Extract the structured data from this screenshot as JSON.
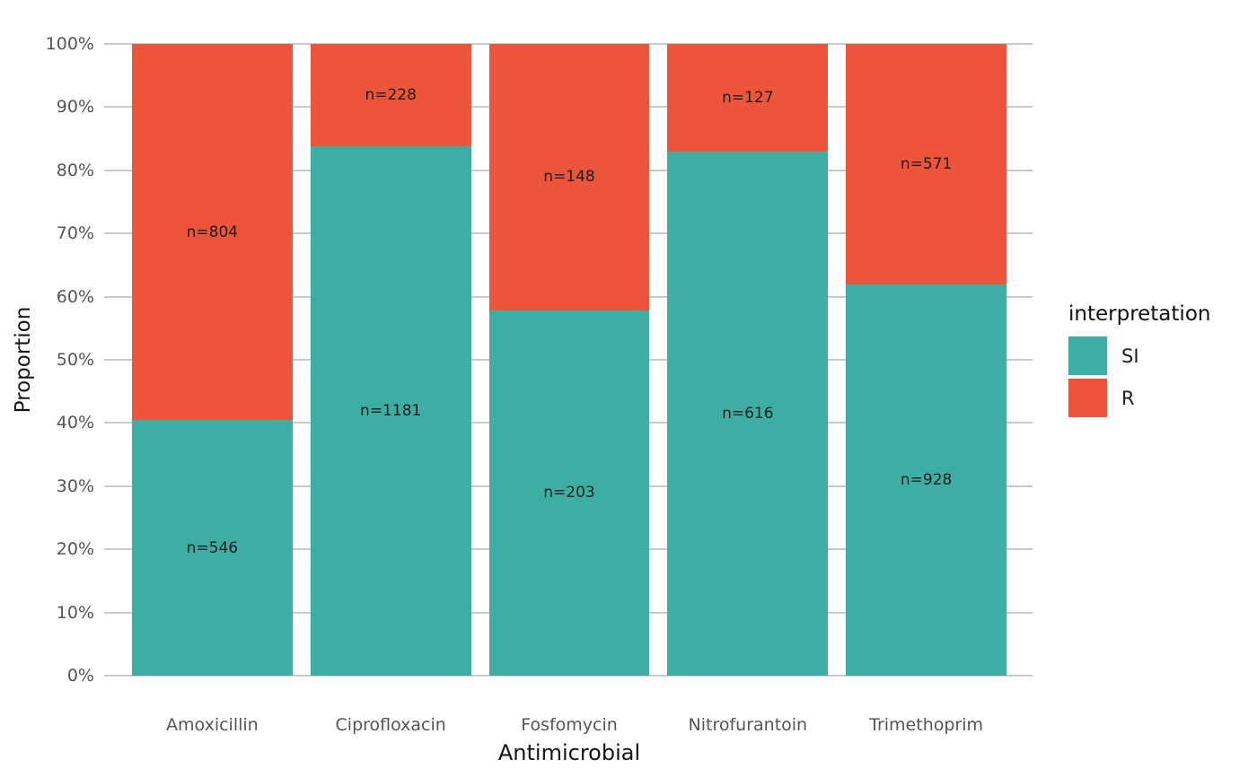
{
  "figure": {
    "background": "#ffffff"
  },
  "chart_data": {
    "type": "bar",
    "subtype": "stacked-100-percent",
    "orientation": "vertical",
    "title": "",
    "xlabel": "Antimicrobial",
    "ylabel": "Proportion",
    "categories": [
      "Amoxicillin",
      "Ciprofloxacin",
      "Fosfomycin",
      "Nitrofurantoin",
      "Trimethoprim"
    ],
    "series": [
      {
        "name": "SI",
        "color": "#3CAEA3",
        "stack_position": "bottom",
        "counts": [
          546,
          1181,
          203,
          616,
          928
        ],
        "labels": [
          "n=546",
          "n=1181",
          "n=203",
          "n=616",
          "n=928"
        ],
        "percent_of_total": [
          40.4,
          83.8,
          57.8,
          82.9,
          61.9
        ]
      },
      {
        "name": "R",
        "color": "#ED553B",
        "stack_position": "top",
        "counts": [
          804,
          228,
          148,
          127,
          571
        ],
        "labels": [
          "n=804",
          "n=228",
          "n=148",
          "n=127",
          "n=571"
        ],
        "percent_of_total": [
          59.6,
          16.2,
          42.2,
          17.1,
          38.1
        ]
      }
    ],
    "y_ticks": [
      "0%",
      "10%",
      "20%",
      "30%",
      "40%",
      "50%",
      "60%",
      "70%",
      "80%",
      "90%",
      "100%"
    ],
    "ylim": [
      0,
      100
    ],
    "grid": "horizontal",
    "legend": {
      "title": "interpretation",
      "position": "right",
      "items": [
        {
          "label": "SI",
          "color": "#3CAEA3"
        },
        {
          "label": "R",
          "color": "#ED553B"
        }
      ]
    },
    "styles": {
      "grid_color": "#c9c9c9",
      "tick_label_color": "#555555",
      "axis_title_color": "#151515",
      "bar_label_color": "#1d1d1d"
    }
  }
}
